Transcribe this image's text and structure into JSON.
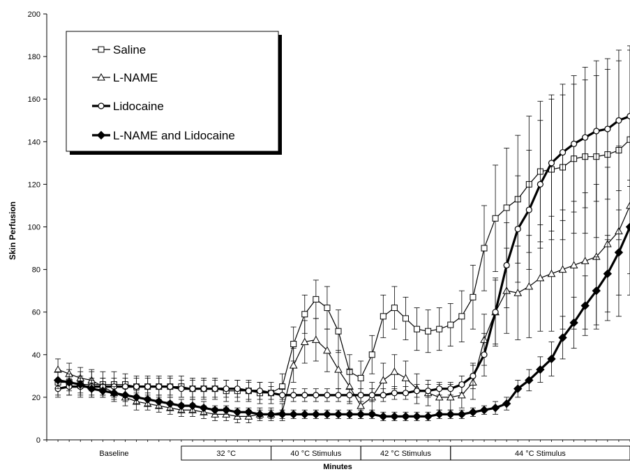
{
  "chart_data": {
    "type": "line",
    "title": "",
    "xlabel": "Minutes",
    "ylabel": "Skin Perfusion",
    "ylim": [
      0,
      200
    ],
    "yticks": [
      0,
      20,
      40,
      60,
      80,
      100,
      120,
      140,
      160,
      180,
      200
    ],
    "grid": false,
    "legend_position": "top-left",
    "x_phases": [
      {
        "label": "Baseline",
        "start": 0,
        "end": 6
      },
      {
        "label": "32 °C",
        "start": 6,
        "end": 10
      },
      {
        "label": "40 °C Stimulus",
        "start": 10,
        "end": 14
      },
      {
        "label": "42 °C Stimulus",
        "start": 14,
        "end": 18
      },
      {
        "label": "44 °C Stimulus",
        "start": 18,
        "end": 26
      }
    ],
    "x": [
      0.5,
      1,
      1.5,
      2,
      2.5,
      3,
      3.5,
      4,
      4.5,
      5,
      5.5,
      6,
      6.5,
      7,
      7.5,
      8,
      8.5,
      9,
      9.5,
      10,
      10.5,
      11,
      11.5,
      12,
      12.5,
      13,
      13.5,
      14,
      14.5,
      15,
      15.5,
      16,
      16.5,
      17,
      17.5,
      18,
      18.5,
      19,
      19.5,
      20,
      20.5,
      21,
      21.5,
      22,
      22.5,
      23,
      23.5,
      24,
      24.5,
      25,
      25.5,
      26
    ],
    "series": [
      {
        "name": "Saline",
        "marker": "square-open",
        "line_width": "thin",
        "values": [
          27,
          27,
          26,
          26,
          26,
          26,
          26,
          25,
          25,
          25,
          25,
          25,
          24,
          24,
          24,
          23,
          23,
          23,
          22,
          22,
          25,
          45,
          59,
          66,
          62,
          51,
          32,
          29,
          40,
          58,
          62,
          57,
          52,
          51,
          52,
          54,
          58,
          67,
          90,
          104,
          109,
          113,
          120,
          126,
          127,
          128,
          132,
          133,
          133,
          134,
          136,
          141
        ],
        "error": [
          6,
          6,
          6,
          6,
          6,
          6,
          5,
          5,
          5,
          5,
          5,
          5,
          5,
          5,
          5,
          5,
          5,
          5,
          5,
          5,
          6,
          8,
          9,
          9,
          10,
          10,
          8,
          8,
          9,
          10,
          10,
          10,
          10,
          10,
          10,
          10,
          12,
          15,
          20,
          25,
          28,
          30,
          32,
          33,
          33,
          34,
          35,
          36,
          38,
          40,
          42,
          42
        ]
      },
      {
        "name": "L-NAME",
        "marker": "triangle-open",
        "line_width": "thin",
        "values": [
          33,
          31,
          29,
          28,
          25,
          22,
          20,
          18,
          17,
          16,
          15,
          14,
          14,
          13,
          12,
          12,
          11,
          11,
          12,
          12,
          13,
          35,
          46,
          47,
          42,
          33,
          25,
          16,
          20,
          28,
          32,
          29,
          24,
          22,
          20,
          20,
          21,
          27,
          47,
          60,
          70,
          69,
          72,
          76,
          78,
          80,
          82,
          84,
          86,
          92,
          98,
          110
        ],
        "error": [
          5,
          5,
          5,
          5,
          4,
          4,
          4,
          4,
          3,
          3,
          3,
          3,
          3,
          3,
          3,
          3,
          3,
          3,
          3,
          3,
          4,
          8,
          10,
          10,
          10,
          9,
          8,
          6,
          7,
          8,
          8,
          8,
          7,
          6,
          6,
          6,
          6,
          8,
          12,
          16,
          20,
          22,
          24,
          25,
          27,
          28,
          30,
          32,
          34,
          36,
          40,
          42
        ]
      },
      {
        "name": "Lidocaine",
        "marker": "circle-open",
        "line_width": "thick",
        "values": [
          24,
          25,
          25,
          25,
          25,
          25,
          25,
          25,
          25,
          25,
          25,
          24,
          24,
          24,
          24,
          24,
          24,
          23,
          23,
          22,
          21,
          21,
          21,
          21,
          21,
          21,
          21,
          21,
          21,
          21,
          22,
          22,
          23,
          23,
          24,
          24,
          26,
          30,
          40,
          60,
          82,
          99,
          108,
          120,
          130,
          135,
          139,
          142,
          145,
          146,
          150,
          152
        ],
        "error": [
          4,
          4,
          4,
          4,
          4,
          4,
          4,
          4,
          4,
          4,
          4,
          4,
          4,
          4,
          4,
          4,
          4,
          4,
          4,
          3,
          3,
          3,
          3,
          3,
          3,
          3,
          3,
          3,
          3,
          3,
          3,
          3,
          3,
          3,
          3,
          3,
          4,
          6,
          10,
          15,
          20,
          25,
          28,
          30,
          32,
          32,
          32,
          33,
          33,
          33,
          33,
          33
        ]
      },
      {
        "name": "L-NAME and Lidocaine",
        "marker": "diamond-filled",
        "line_width": "thick",
        "values": [
          28,
          27,
          26,
          24,
          23,
          22,
          21,
          20,
          19,
          18,
          17,
          16,
          16,
          15,
          14,
          14,
          13,
          13,
          12,
          12,
          12,
          12,
          12,
          12,
          12,
          12,
          12,
          12,
          12,
          11,
          11,
          11,
          11,
          11,
          12,
          12,
          12,
          13,
          14,
          15,
          17,
          24,
          28,
          33,
          38,
          48,
          55,
          63,
          70,
          78,
          88,
          100
        ],
        "error": [
          4,
          4,
          4,
          4,
          3,
          3,
          3,
          3,
          3,
          3,
          3,
          3,
          3,
          3,
          2,
          2,
          2,
          2,
          2,
          2,
          2,
          2,
          2,
          2,
          2,
          2,
          2,
          2,
          2,
          2,
          2,
          2,
          2,
          2,
          2,
          2,
          2,
          2,
          2,
          3,
          3,
          4,
          5,
          6,
          8,
          10,
          12,
          14,
          16,
          18,
          20,
          22
        ]
      }
    ]
  }
}
